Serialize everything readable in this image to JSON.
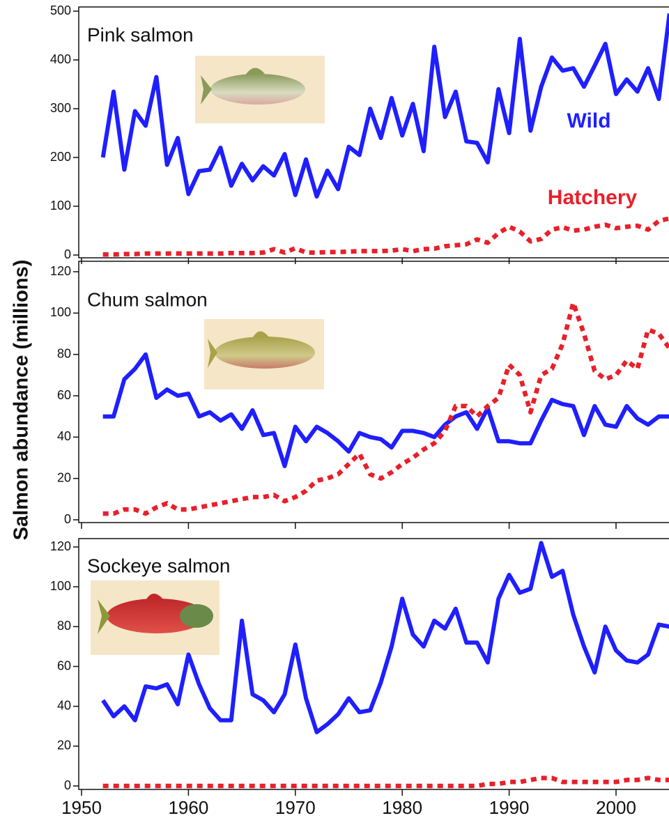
{
  "chart_data": [
    {
      "type": "line",
      "title": "Pink salmon",
      "ylabel": "Salmon abundance (millions)",
      "x": [
        1952,
        1953,
        1954,
        1955,
        1956,
        1957,
        1958,
        1959,
        1960,
        1961,
        1962,
        1963,
        1964,
        1965,
        1966,
        1967,
        1968,
        1969,
        1970,
        1971,
        1972,
        1973,
        1974,
        1975,
        1976,
        1977,
        1978,
        1979,
        1980,
        1981,
        1982,
        1983,
        1984,
        1985,
        1986,
        1987,
        1988,
        1989,
        1990,
        1991,
        1992,
        1993,
        1994,
        1995,
        1996,
        1997,
        1998,
        1999,
        2000,
        2001,
        2002,
        2003,
        2004,
        2005
      ],
      "series": [
        {
          "name": "Wild",
          "color": "#1f1fff",
          "values": [
            200,
            335,
            175,
            295,
            265,
            365,
            185,
            240,
            125,
            172,
            175,
            220,
            142,
            187,
            153,
            182,
            163,
            207,
            123,
            196,
            120,
            173,
            135,
            222,
            205,
            300,
            240,
            322,
            245,
            310,
            213,
            427,
            283,
            335,
            233,
            230,
            190,
            340,
            250,
            443,
            255,
            345,
            405,
            378,
            383,
            345,
            388,
            433,
            330,
            360,
            335,
            383,
            320,
            495
          ]
        },
        {
          "name": "Hatchery",
          "color": "#e8202a",
          "values": [
            1,
            1,
            2,
            2,
            3,
            3,
            3,
            3,
            3,
            3,
            3,
            3,
            4,
            4,
            4,
            5,
            12,
            5,
            14,
            5,
            5,
            6,
            6,
            7,
            8,
            8,
            8,
            9,
            12,
            8,
            12,
            13,
            18,
            20,
            22,
            32,
            25,
            45,
            58,
            48,
            28,
            33,
            52,
            57,
            50,
            52,
            58,
            62,
            55,
            58,
            60,
            52,
            70,
            75
          ]
        }
      ],
      "xlim": [
        1950,
        2005
      ],
      "xticks": [
        1950,
        1960,
        1970,
        1980,
        1990,
        2000
      ],
      "ylim": [
        0,
        500
      ],
      "yticks": [
        0,
        100,
        200,
        300,
        400,
        500
      ]
    },
    {
      "type": "line",
      "title": "Chum salmon",
      "x": [
        1952,
        1953,
        1954,
        1955,
        1956,
        1957,
        1958,
        1959,
        1960,
        1961,
        1962,
        1963,
        1964,
        1965,
        1966,
        1967,
        1968,
        1969,
        1970,
        1971,
        1972,
        1973,
        1974,
        1975,
        1976,
        1977,
        1978,
        1979,
        1980,
        1981,
        1982,
        1983,
        1984,
        1985,
        1986,
        1987,
        1988,
        1989,
        1990,
        1991,
        1992,
        1993,
        1994,
        1995,
        1996,
        1997,
        1998,
        1999,
        2000,
        2001,
        2002,
        2003,
        2004,
        2005
      ],
      "series": [
        {
          "color": "#1f1fff",
          "values": [
            50,
            50,
            68,
            73,
            80,
            59,
            63,
            60,
            61,
            50,
            52,
            48,
            51,
            44,
            53,
            41,
            42,
            26,
            45,
            38,
            45,
            42,
            38,
            33,
            42,
            40,
            39,
            35,
            43,
            43,
            42,
            40,
            46,
            50,
            52,
            44,
            54,
            38,
            38,
            37,
            37,
            48,
            58,
            56,
            55,
            41,
            55,
            46,
            45,
            55,
            49,
            46,
            50,
            50
          ]
        },
        {
          "color": "#e8202a",
          "values": [
            3,
            3,
            5,
            5,
            3,
            6,
            8,
            5,
            5,
            6,
            7,
            8,
            9,
            10,
            11,
            11,
            12,
            9,
            11,
            14,
            19,
            20,
            22,
            27,
            32,
            22,
            20,
            23,
            27,
            30,
            34,
            37,
            43,
            55,
            55,
            50,
            55,
            59,
            75,
            70,
            52,
            70,
            73,
            85,
            105,
            90,
            72,
            68,
            70,
            77,
            73,
            92,
            90,
            83
          ]
        }
      ],
      "xlim": [
        1950,
        2005
      ],
      "xticks": [
        1950,
        1960,
        1970,
        1980,
        1990,
        2000
      ],
      "ylim": [
        0,
        120
      ],
      "yticks": [
        0,
        20,
        40,
        60,
        80,
        100,
        120
      ]
    },
    {
      "type": "line",
      "title": "Sockeye salmon",
      "x": [
        1952,
        1953,
        1954,
        1955,
        1956,
        1957,
        1958,
        1959,
        1960,
        1961,
        1962,
        1963,
        1964,
        1965,
        1966,
        1967,
        1968,
        1969,
        1970,
        1971,
        1972,
        1973,
        1974,
        1975,
        1976,
        1977,
        1978,
        1979,
        1980,
        1981,
        1982,
        1983,
        1984,
        1985,
        1986,
        1987,
        1988,
        1989,
        1990,
        1991,
        1992,
        1993,
        1994,
        1995,
        1996,
        1997,
        1998,
        1999,
        2000,
        2001,
        2002,
        2003,
        2004,
        2005
      ],
      "series": [
        {
          "color": "#1f1fff",
          "values": [
            43,
            35,
            40,
            33,
            50,
            49,
            51,
            41,
            66,
            51,
            39,
            33,
            33,
            83,
            46,
            43,
            37,
            46,
            71,
            44,
            27,
            31,
            36,
            44,
            37,
            38,
            52,
            70,
            94,
            76,
            70,
            83,
            79,
            89,
            72,
            72,
            62,
            94,
            106,
            97,
            99,
            122,
            105,
            108,
            86,
            70,
            57,
            80,
            68,
            63,
            62,
            66,
            81,
            80
          ]
        },
        {
          "color": "#e8202a",
          "values": [
            0,
            0,
            0,
            0,
            0,
            0,
            0,
            0,
            0,
            0,
            0,
            0,
            0,
            0,
            0,
            0,
            0,
            0,
            0,
            0,
            0,
            0,
            0,
            0,
            0,
            0,
            0,
            0,
            0,
            0,
            0,
            0,
            0,
            0,
            0,
            0,
            1,
            1,
            2,
            2,
            3,
            4,
            4,
            2,
            2,
            2,
            2,
            2,
            2,
            3,
            3,
            4,
            3,
            3
          ]
        }
      ],
      "xlim": [
        1950,
        2005
      ],
      "xticks": [
        1950,
        1960,
        1970,
        1980,
        1990,
        2000
      ],
      "ylim": [
        0,
        120
      ],
      "yticks": [
        0,
        20,
        40,
        60,
        80,
        100,
        120
      ]
    }
  ]
}
